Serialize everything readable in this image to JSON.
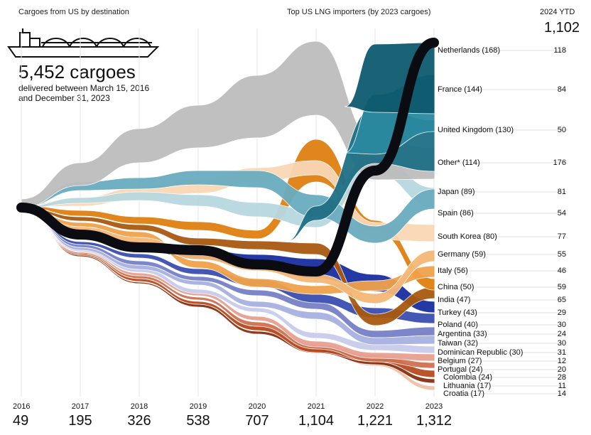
{
  "header": {
    "left_label": "Cargoes from US by destination",
    "center_label": "Top US LNG importers (by 2023 cargoes)",
    "ytd_label": "2024 YTD",
    "ytd_total": "1,102",
    "big_total": "5,452 cargoes",
    "sub_line1": "delivered between March 15, 2016",
    "sub_line2": "and December 31, 2023"
  },
  "chart_data": {
    "type": "area",
    "years": [
      "2016",
      "2017",
      "2018",
      "2019",
      "2020",
      "2021",
      "2022",
      "2023"
    ],
    "year_totals": [
      "49",
      "195",
      "326",
      "538",
      "707",
      "1,104",
      "1,221",
      "1,312"
    ],
    "series": [
      {
        "name": "Netherlands (168)",
        "ytd": "118",
        "color": "#0e5a6e",
        "y2023": 168
      },
      {
        "name": "France (144)",
        "ytd": "84",
        "color": "#2a8aa0",
        "y2023": 144
      },
      {
        "name": "United Kingdom (130)",
        "ytd": "50",
        "color": "#1f6f85",
        "y2023": 130
      },
      {
        "name": "Other* (114)",
        "ytd": "176",
        "color": "#bdbdbd",
        "y2023": 114
      },
      {
        "name": "Japan (89)",
        "ytd": "81",
        "color": "#6aacbf",
        "y2023": 89
      },
      {
        "name": "Spain (86)",
        "ytd": "54",
        "color": "#b8d8e0",
        "y2023": 86
      },
      {
        "name": "South Korea (80)",
        "ytd": "77",
        "color": "#f9d7b4",
        "y2023": 80
      },
      {
        "name": "Germany (59)",
        "ytd": "55",
        "color": "#f5b877",
        "y2023": 59
      },
      {
        "name": "Italy (56)",
        "ytd": "46",
        "color": "#f0a24a",
        "y2023": 56
      },
      {
        "name": "China (50)",
        "ytd": "59",
        "color": "#e08010",
        "y2023": 50
      },
      {
        "name": "India (47)",
        "ytd": "65",
        "color": "#a85a10",
        "y2023": 47
      },
      {
        "name": "Turkey (43)",
        "ytd": "29",
        "color": "#1a2fa0",
        "y2023": 43
      },
      {
        "name": "Poland (40)",
        "ytd": "30",
        "color": "#3a4fb0",
        "y2023": 40
      },
      {
        "name": "Argentina (33)",
        "ytd": "24",
        "color": "#7880c8",
        "y2023": 33
      },
      {
        "name": "Taiwan (32)",
        "ytd": "30",
        "color": "#a8b0e0",
        "y2023": 32
      },
      {
        "name": "Dominican Republic (30)",
        "ytd": "31",
        "color": "#c8cceb",
        "y2023": 30
      },
      {
        "name": "Belgium (27)",
        "ytd": "12",
        "color": "#e8a090",
        "y2023": 27
      },
      {
        "name": "Portugal (24)",
        "ytd": "20",
        "color": "#d07050",
        "y2023": 24
      },
      {
        "name": "Colombia (24)",
        "ytd": "28",
        "color": "#b84a20",
        "y2023": 24
      },
      {
        "name": "Lithuania (17)",
        "ytd": "11",
        "color": "#8a3010",
        "y2023": 17
      },
      {
        "name": "Croatia (17)",
        "ytd": "14",
        "color": "#f0c0a8",
        "y2023": 17
      }
    ]
  }
}
